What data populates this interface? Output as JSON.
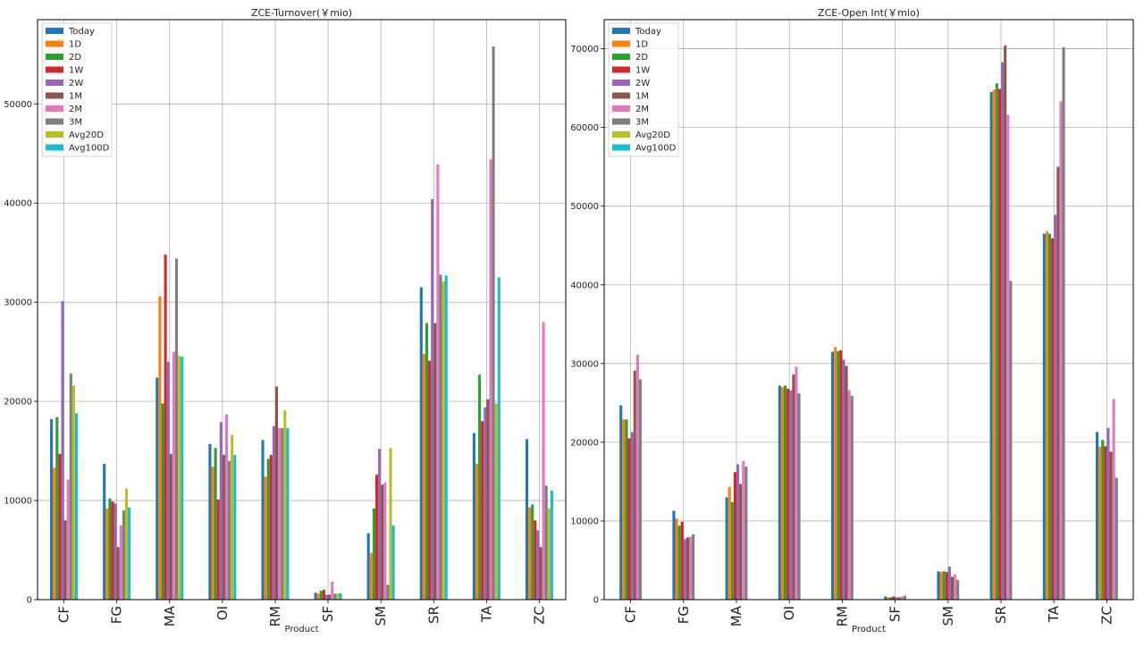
{
  "chart_data": [
    {
      "type": "bar",
      "title": "ZCE-Turnover(￥mio)",
      "xlabel": "Product",
      "ylabel": "",
      "ylim": [
        0,
        58500
      ],
      "yticks": [
        0,
        10000,
        20000,
        30000,
        40000,
        50000
      ],
      "grid": true,
      "legend": "top-left",
      "categories": [
        "CF",
        "FG",
        "MA",
        "OI",
        "RM",
        "SF",
        "SM",
        "SR",
        "TA",
        "ZC"
      ],
      "series": [
        {
          "name": "Today",
          "color": "#1f77b4",
          "values": [
            18200,
            13700,
            22400,
            15700,
            16100,
            700,
            6700,
            31500,
            16800,
            16200
          ]
        },
        {
          "name": "1D",
          "color": "#ff7f0e",
          "values": [
            13300,
            9200,
            30600,
            13400,
            12400,
            600,
            4700,
            24800,
            13700,
            9300
          ]
        },
        {
          "name": "2D",
          "color": "#2ca02c",
          "values": [
            18400,
            10200,
            19800,
            15300,
            14200,
            900,
            9200,
            27900,
            22700,
            9600
          ]
        },
        {
          "name": "1W",
          "color": "#d62728",
          "values": [
            14700,
            9900,
            34800,
            10100,
            14600,
            1000,
            12600,
            24100,
            18000,
            8000
          ]
        },
        {
          "name": "2W",
          "color": "#9467bd",
          "values": [
            30100,
            9700,
            24000,
            17900,
            17500,
            500,
            15200,
            40400,
            19400,
            7000
          ]
        },
        {
          "name": "1M",
          "color": "#8c564b",
          "values": [
            8000,
            5300,
            14700,
            14600,
            21500,
            500,
            11600,
            27900,
            20200,
            5300
          ]
        },
        {
          "name": "2M",
          "color": "#e377c2",
          "values": [
            12100,
            7500,
            25000,
            18700,
            17300,
            1800,
            11800,
            43900,
            44400,
            28000
          ]
        },
        {
          "name": "3M",
          "color": "#7f7f7f",
          "values": [
            22800,
            9000,
            34400,
            14000,
            17300,
            600,
            1500,
            32800,
            55800,
            11500
          ]
        },
        {
          "name": "Avg20D",
          "color": "#bcbd22",
          "values": [
            21600,
            11200,
            24600,
            16600,
            19100,
            600,
            15300,
            32100,
            19800,
            9200
          ]
        },
        {
          "name": "Avg100D",
          "color": "#17becf",
          "values": [
            18800,
            9300,
            24500,
            14600,
            17300,
            650,
            7500,
            32700,
            32500,
            11000
          ]
        }
      ]
    },
    {
      "type": "bar",
      "title": "ZCE-Open Int(￥mio)",
      "xlabel": "Product",
      "ylabel": "",
      "ylim": [
        0,
        73700
      ],
      "yticks": [
        0,
        10000,
        20000,
        30000,
        40000,
        50000,
        60000,
        70000
      ],
      "grid": true,
      "legend": "top-left",
      "categories": [
        "CF",
        "FG",
        "MA",
        "OI",
        "RM",
        "SF",
        "SM",
        "SR",
        "TA",
        "ZC"
      ],
      "series": [
        {
          "name": "Today",
          "color": "#1f77b4",
          "values": [
            24700,
            11300,
            13000,
            27200,
            31500,
            400,
            3600,
            64500,
            46500,
            21300
          ]
        },
        {
          "name": "1D",
          "color": "#ff7f0e",
          "values": [
            22900,
            10300,
            14300,
            27000,
            32100,
            300,
            3500,
            64800,
            46800,
            19400
          ]
        },
        {
          "name": "2D",
          "color": "#2ca02c",
          "values": [
            22900,
            9400,
            12400,
            27200,
            31600,
            300,
            3600,
            65600,
            46500,
            20300
          ]
        },
        {
          "name": "1W",
          "color": "#d62728",
          "values": [
            20500,
            9900,
            16200,
            26800,
            31700,
            400,
            3500,
            64900,
            45900,
            19500
          ]
        },
        {
          "name": "2W",
          "color": "#9467bd",
          "values": [
            21300,
            7700,
            17200,
            26600,
            30500,
            300,
            4200,
            68300,
            48900,
            21800
          ]
        },
        {
          "name": "1M",
          "color": "#8c564b",
          "values": [
            29100,
            7900,
            14700,
            28600,
            29700,
            300,
            2900,
            70400,
            55000,
            18800
          ]
        },
        {
          "name": "2M",
          "color": "#e377c2",
          "values": [
            31100,
            8000,
            17600,
            29600,
            26600,
            400,
            3200,
            61600,
            63300,
            25500
          ]
        },
        {
          "name": "3M",
          "color": "#7f7f7f",
          "values": [
            28000,
            8300,
            16900,
            26200,
            25900,
            500,
            2500,
            40500,
            70200,
            15500
          ]
        }
      ],
      "legend_entries": [
        "Today",
        "1D",
        "2D",
        "1W",
        "2W",
        "1M",
        "2M",
        "3M",
        "Avg20D",
        "Avg100D"
      ],
      "legend_colors": [
        "#1f77b4",
        "#ff7f0e",
        "#2ca02c",
        "#d62728",
        "#9467bd",
        "#8c564b",
        "#e377c2",
        "#7f7f7f",
        "#bcbd22",
        "#17becf"
      ]
    }
  ]
}
